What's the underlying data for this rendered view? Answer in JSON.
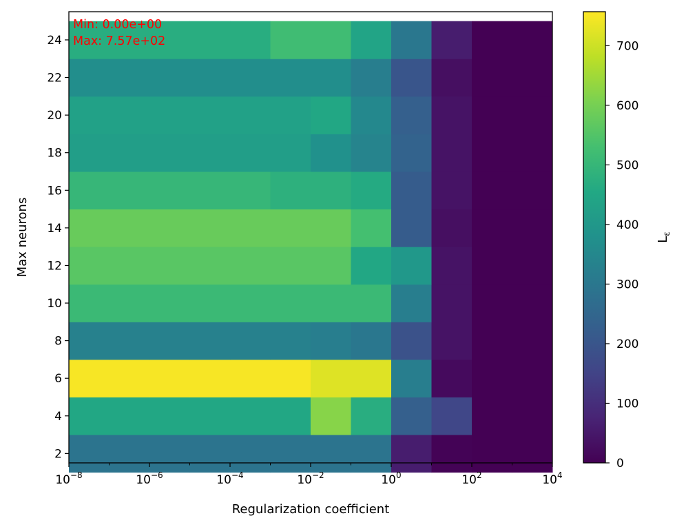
{
  "chart_data": {
    "type": "heatmap",
    "xlabel": "Regularization coefficient",
    "ylabel": "Max neurons",
    "colorbar_label": "L",
    "colorbar_label_subscript": "ε",
    "x_scale": "log",
    "x_range": [
      1e-08,
      10000.0
    ],
    "x_tick_exponents": [
      "−8",
      "−6",
      "−4",
      "−2",
      "0",
      "2",
      "4"
    ],
    "x_tick_base": "10",
    "x_edges_exponent": [
      -8,
      -7,
      -6,
      -5,
      -4,
      -3,
      -2,
      -1,
      0,
      1,
      2,
      3,
      4
    ],
    "y_rows": [
      2,
      4,
      6,
      8,
      10,
      12,
      14,
      16,
      18,
      20,
      22,
      24
    ],
    "y_range": [
      1.5,
      25.5
    ],
    "y_ticks": [
      "2",
      "4",
      "6",
      "8",
      "10",
      "12",
      "14",
      "16",
      "18",
      "20",
      "22",
      "24"
    ],
    "colorbar_range": [
      0,
      757
    ],
    "colorbar_ticks": [
      "0",
      "100",
      "200",
      "300",
      "400",
      "500",
      "600",
      "700"
    ],
    "colorbar_tick_values": [
      0,
      100,
      200,
      300,
      400,
      500,
      600,
      700
    ],
    "colormap": "viridis",
    "annotation_min": "Min: 0.00e+00",
    "annotation_max": "Max: 7.57e+02",
    "annotation_color": "#ff0000",
    "values_by_row": [
      [
        290,
        290,
        290,
        290,
        290,
        290,
        290,
        290,
        60,
        5,
        0,
        0
      ],
      [
        450,
        450,
        450,
        450,
        450,
        450,
        620,
        470,
        230,
        160,
        0,
        0
      ],
      [
        750,
        750,
        750,
        750,
        750,
        750,
        720,
        720,
        320,
        20,
        0,
        0
      ],
      [
        330,
        330,
        330,
        330,
        330,
        330,
        320,
        300,
        190,
        40,
        0,
        0
      ],
      [
        510,
        510,
        510,
        510,
        510,
        510,
        510,
        510,
        320,
        40,
        0,
        0
      ],
      [
        560,
        560,
        560,
        560,
        560,
        560,
        560,
        450,
        400,
        40,
        0,
        0
      ],
      [
        580,
        580,
        580,
        580,
        580,
        580,
        580,
        530,
        220,
        30,
        0,
        0
      ],
      [
        500,
        500,
        500,
        500,
        500,
        480,
        480,
        460,
        220,
        40,
        0,
        0
      ],
      [
        420,
        420,
        420,
        420,
        420,
        420,
        380,
        340,
        240,
        40,
        0,
        0
      ],
      [
        430,
        430,
        430,
        430,
        430,
        430,
        450,
        350,
        230,
        40,
        0,
        0
      ],
      [
        370,
        370,
        370,
        370,
        370,
        370,
        370,
        320,
        200,
        30,
        0,
        0
      ],
      [
        470,
        470,
        470,
        470,
        470,
        520,
        520,
        440,
        300,
        60,
        0,
        0
      ]
    ]
  }
}
